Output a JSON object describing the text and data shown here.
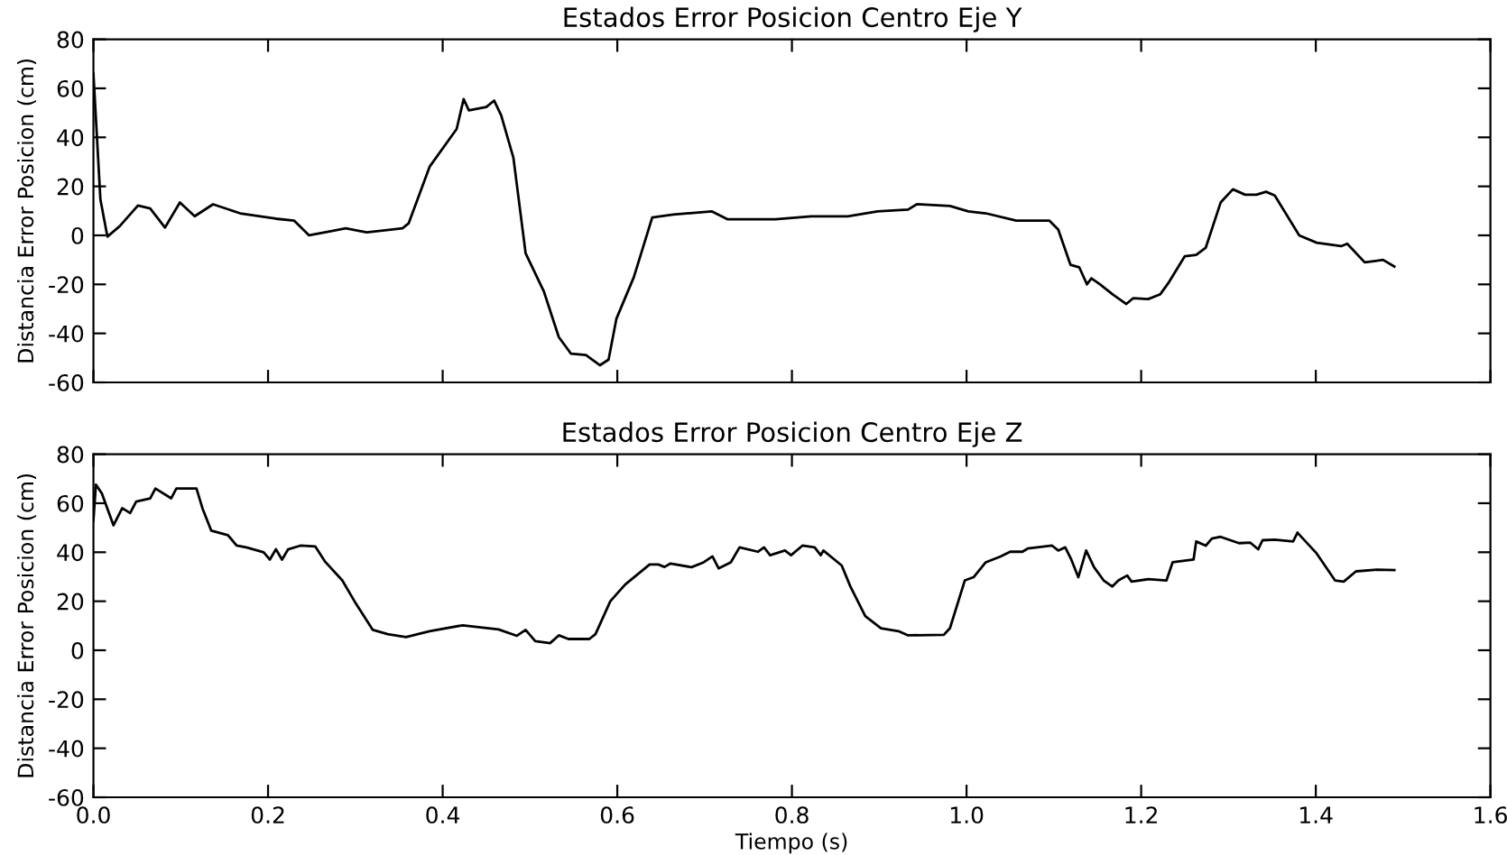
{
  "chart_data": [
    {
      "type": "line",
      "title": "Estados Error Posicion Centro Eje Y",
      "ylabel": "Distancia Error Posicion (cm)",
      "xlim": [
        0,
        1.6
      ],
      "ylim": [
        -60,
        80
      ],
      "xticks": [
        0,
        0.2,
        0.4,
        0.6,
        0.8,
        1,
        1.2,
        1.4,
        1.6
      ],
      "yticks": [
        -60,
        -40,
        -20,
        0,
        20,
        40,
        60,
        80
      ],
      "tick_labels": "y",
      "grid": false,
      "series": [
        {
          "color": "#000000",
          "x": [
            0,
            0.008,
            0.016,
            0.03,
            0.051,
            0.065,
            0.082,
            0.099,
            0.116,
            0.137,
            0.168,
            0.209,
            0.23,
            0.247,
            0.265,
            0.289,
            0.313,
            0.354,
            0.361,
            0.385,
            0.416,
            0.424,
            0.43,
            0.45,
            0.459,
            0.467,
            0.481,
            0.495,
            0.516,
            0.533,
            0.547,
            0.564,
            0.58,
            0.59,
            0.599,
            0.619,
            0.64,
            0.664,
            0.708,
            0.726,
            0.781,
            0.822,
            0.864,
            0.898,
            0.933,
            0.943,
            0.981,
            1.002,
            1.022,
            1.057,
            1.095,
            1.105,
            1.119,
            1.129,
            1.138,
            1.143,
            1.153,
            1.167,
            1.183,
            1.191,
            1.208,
            1.222,
            1.232,
            1.25,
            1.263,
            1.274,
            1.291,
            1.305,
            1.319,
            1.332,
            1.343,
            1.353,
            1.381,
            1.401,
            1.429,
            1.436,
            1.456,
            1.477,
            1.49
          ],
          "values": [
            66,
            14.6,
            -0.5,
            3.7,
            12.2,
            11,
            3.2,
            13.4,
            7.8,
            12.7,
            9,
            6.8,
            6,
            0,
            1.2,
            2.9,
            1.2,
            2.9,
            4.9,
            28,
            43.4,
            55.6,
            51,
            52.4,
            55,
            49,
            31.7,
            -7.3,
            -23,
            -41.5,
            -48.3,
            -48.8,
            -53,
            -50.7,
            -34,
            -17,
            7.3,
            8.5,
            9.8,
            6.6,
            6.6,
            7.8,
            7.8,
            9.8,
            10.5,
            12.7,
            12,
            9.8,
            9,
            6,
            6,
            2.4,
            -12,
            -13,
            -20,
            -17.5,
            -20,
            -24,
            -28,
            -25.6,
            -26,
            -24,
            -19,
            -8.5,
            -8,
            -5,
            13.4,
            18.8,
            16.6,
            16.6,
            17.8,
            16.3,
            0,
            -3,
            -4.4,
            -3.4,
            -11,
            -10,
            -12.7
          ]
        }
      ]
    },
    {
      "type": "line",
      "title": "Estados Error Posicion Centro Eje Z",
      "xlabel": "Tiempo (s)",
      "ylabel": "Distancia Error Posicion (cm)",
      "xlim": [
        0,
        1.6
      ],
      "ylim": [
        -60,
        80
      ],
      "xticks": [
        {
          "value": 0,
          "label": "0.0"
        },
        0.2,
        0.4,
        0.6,
        0.8,
        {
          "value": 1,
          "label": "1.0"
        },
        1.2,
        1.4,
        1.6
      ],
      "yticks": [
        -60,
        -40,
        -20,
        0,
        20,
        40,
        60,
        80
      ],
      "grid": false,
      "series": [
        {
          "color": "#000000",
          "x": [
            0,
            0.0028,
            0.0096,
            0.023,
            0.033,
            0.042,
            0.049,
            0.065,
            0.071,
            0.089,
            0.095,
            0.118,
            0.125,
            0.135,
            0.154,
            0.164,
            0.175,
            0.195,
            0.202,
            0.209,
            0.216,
            0.223,
            0.237,
            0.254,
            0.265,
            0.285,
            0.299,
            0.32,
            0.337,
            0.358,
            0.385,
            0.423,
            0.464,
            0.485,
            0.495,
            0.506,
            0.523,
            0.533,
            0.544,
            0.568,
            0.575,
            0.592,
            0.609,
            0.637,
            0.647,
            0.654,
            0.661,
            0.685,
            0.699,
            0.709,
            0.716,
            0.73,
            0.74,
            0.761,
            0.768,
            0.775,
            0.792,
            0.799,
            0.812,
            0.826,
            0.833,
            0.836,
            0.857,
            0.867,
            0.884,
            0.902,
            0.922,
            0.933,
            0.974,
            0.981,
            0.998,
            1.008,
            1.022,
            1.039,
            1.05,
            1.064,
            1.07,
            1.098,
            1.105,
            1.113,
            1.12,
            1.128,
            1.137,
            1.146,
            1.157,
            1.167,
            1.174,
            1.184,
            1.189,
            1.208,
            1.229,
            1.236,
            1.25,
            1.26,
            1.263,
            1.274,
            1.281,
            1.291,
            1.312,
            1.325,
            1.334,
            1.339,
            1.353,
            1.374,
            1.379,
            1.401,
            1.422,
            1.432,
            1.446,
            1.47,
            1.49
          ],
          "values": [
            53,
            67.6,
            64,
            51,
            58,
            56,
            60.7,
            62,
            66,
            62,
            66,
            66,
            57.8,
            48.8,
            47,
            42.7,
            42,
            40,
            37,
            41.2,
            37,
            41.2,
            42.7,
            42.4,
            36.3,
            28.5,
            20,
            8.3,
            6.6,
            5.4,
            7.8,
            10.2,
            8.5,
            5.9,
            8.3,
            3.7,
            2.9,
            6.1,
            4.6,
            4.6,
            6.6,
            20,
            26.8,
            35,
            35,
            34,
            35.4,
            33.9,
            35.9,
            38.3,
            33.4,
            35.9,
            42,
            40.2,
            42,
            38.8,
            40.7,
            38.8,
            42.7,
            42,
            38.8,
            40.7,
            34.6,
            26,
            13.9,
            9,
            7.8,
            6.1,
            6.3,
            9,
            28.5,
            29.8,
            35.9,
            38.3,
            40.2,
            40.2,
            41.5,
            42.7,
            40.7,
            42,
            37,
            29.8,
            40.7,
            33.9,
            28.5,
            26,
            28.5,
            30.5,
            28,
            29,
            28.5,
            35.9,
            36.6,
            37,
            44.4,
            42.7,
            45.6,
            46.3,
            43.7,
            43.9,
            41.2,
            44.9,
            45.1,
            44.4,
            48,
            39.5,
            28.5,
            28,
            32.2,
            32.9,
            32.7
          ]
        }
      ]
    }
  ]
}
